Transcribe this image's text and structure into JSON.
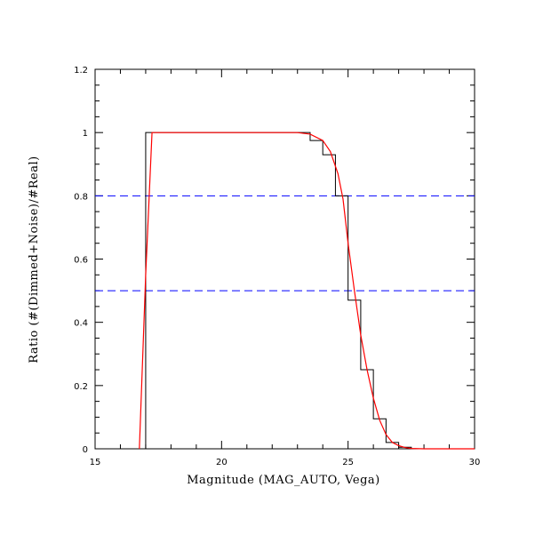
{
  "chart_data": {
    "type": "line",
    "xlabel": "Magnitude (MAG_AUTO, Vega)",
    "ylabel": "Ratio (#(Dimmed+Noise)/#Real)",
    "xlim": [
      15,
      30
    ],
    "ylim": [
      0,
      1.2
    ],
    "xticks": [
      "15",
      "20",
      "25",
      "30"
    ],
    "yticks": [
      "0",
      "0.2",
      "0.4",
      "0.6",
      "0.8",
      "1",
      "1.2"
    ],
    "grid": false,
    "series": [
      {
        "style": "histogram-step",
        "color": "#000000",
        "bin_edges": [
          16.5,
          17.0,
          17.5,
          18.0,
          18.5,
          19.0,
          19.5,
          20.0,
          20.5,
          21.0,
          21.5,
          22.0,
          22.5,
          23.0,
          23.5,
          24.0,
          24.5,
          25.0,
          25.5,
          26.0,
          26.5,
          27.0,
          27.5,
          28.0,
          28.5,
          29.0,
          29.5,
          30.0
        ],
        "values": [
          0,
          1.0,
          1.0,
          1.0,
          1.0,
          1.0,
          1.0,
          1.0,
          1.0,
          1.0,
          1.0,
          1.0,
          1.0,
          1.0,
          0.975,
          0.93,
          0.8,
          0.47,
          0.25,
          0.095,
          0.02,
          0.005,
          0,
          0,
          0,
          0,
          0
        ]
      },
      {
        "style": "smooth-fit",
        "color": "#ff0000",
        "x": [
          16.75,
          17.0,
          17.25,
          17.5,
          18.0,
          19.0,
          20.0,
          21.0,
          22.0,
          23.0,
          23.5,
          24.0,
          24.3,
          24.6,
          24.8,
          25.0,
          25.25,
          25.5,
          25.75,
          26.0,
          26.25,
          26.5,
          26.75,
          27.0,
          27.25,
          27.5,
          28.0,
          29.0,
          30.0
        ],
        "y": [
          0,
          0.55,
          1.0,
          1.0,
          1.0,
          1.0,
          1.0,
          1.0,
          1.0,
          1.0,
          0.995,
          0.975,
          0.94,
          0.87,
          0.79,
          0.65,
          0.5,
          0.36,
          0.25,
          0.16,
          0.09,
          0.045,
          0.02,
          0.01,
          0.004,
          0.001,
          0,
          0,
          0
        ]
      }
    ],
    "reference_lines": [
      {
        "orientation": "horizontal",
        "y": 0.8,
        "color": "#0000ff",
        "dash": "dashed"
      },
      {
        "orientation": "horizontal",
        "y": 0.5,
        "color": "#0000ff",
        "dash": "dashed"
      }
    ]
  }
}
